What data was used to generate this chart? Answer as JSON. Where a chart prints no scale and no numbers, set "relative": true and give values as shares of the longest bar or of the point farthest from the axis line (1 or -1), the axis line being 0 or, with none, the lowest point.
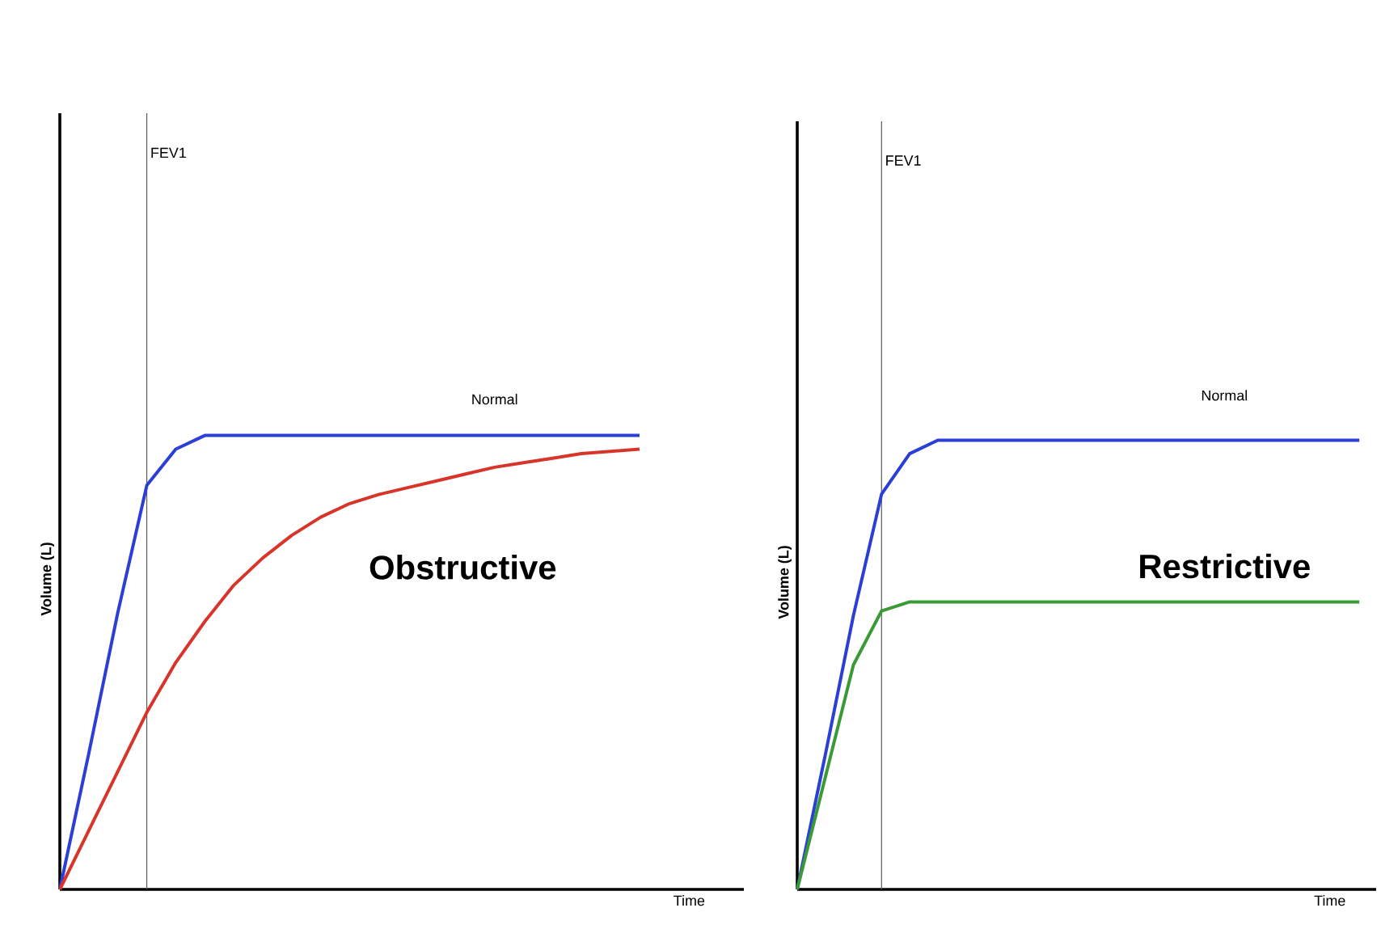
{
  "chart_data": [
    {
      "type": "line",
      "relative": true,
      "xlabel": "Time",
      "ylabel": "Volume (L)",
      "categories": [
        null,
        null,
        null,
        null,
        null,
        null,
        null,
        null,
        null,
        null,
        null,
        null,
        null,
        null,
        null,
        null,
        null,
        null,
        null,
        null,
        null
      ],
      "series": [
        {
          "name": "Normal",
          "color": "#2b3fd6",
          "values": [
            0,
            0.3,
            0.61,
            0.89,
            0.97,
            1.0,
            1.0,
            1.0,
            1.0,
            1.0,
            1.0,
            1.0,
            1.0,
            1.0,
            1.0,
            1.0,
            1.0,
            1.0,
            1.0,
            1.0,
            1.0
          ]
        },
        {
          "name": "**Obstructive**",
          "color": "#d8352a",
          "values": [
            0,
            0.13,
            0.26,
            0.39,
            0.5,
            0.59,
            0.67,
            0.73,
            0.78,
            0.82,
            0.85,
            0.87,
            0.885,
            0.9,
            0.915,
            0.93,
            0.94,
            0.95,
            0.96,
            0.965,
            0.97
          ]
        }
      ],
      "annotations": [
        "FEV1"
      ]
    },
    {
      "type": "line",
      "relative": true,
      "xlabel": "Time",
      "ylabel": "Volume (L)",
      "categories": [
        null,
        null,
        null,
        null,
        null,
        null,
        null,
        null,
        null,
        null,
        null,
        null,
        null,
        null,
        null,
        null,
        null,
        null,
        null,
        null,
        null
      ],
      "series": [
        {
          "name": "Normal",
          "color": "#2b3fd6",
          "values": [
            0,
            0.3,
            0.61,
            0.88,
            0.97,
            1.0,
            1.0,
            1.0,
            1.0,
            1.0,
            1.0,
            1.0,
            1.0,
            1.0,
            1.0,
            1.0,
            1.0,
            1.0,
            1.0,
            1.0,
            1.0
          ]
        },
        {
          "name": "**Restrictive**",
          "color": "#3a9a35",
          "values": [
            0,
            0.25,
            0.5,
            0.62,
            0.64,
            0.64,
            0.64,
            0.64,
            0.64,
            0.64,
            0.64,
            0.64,
            0.64,
            0.64,
            0.64,
            0.64,
            0.64,
            0.64,
            0.64,
            0.64,
            0.64
          ]
        }
      ],
      "annotations": [
        "FEV1"
      ]
    }
  ]
}
